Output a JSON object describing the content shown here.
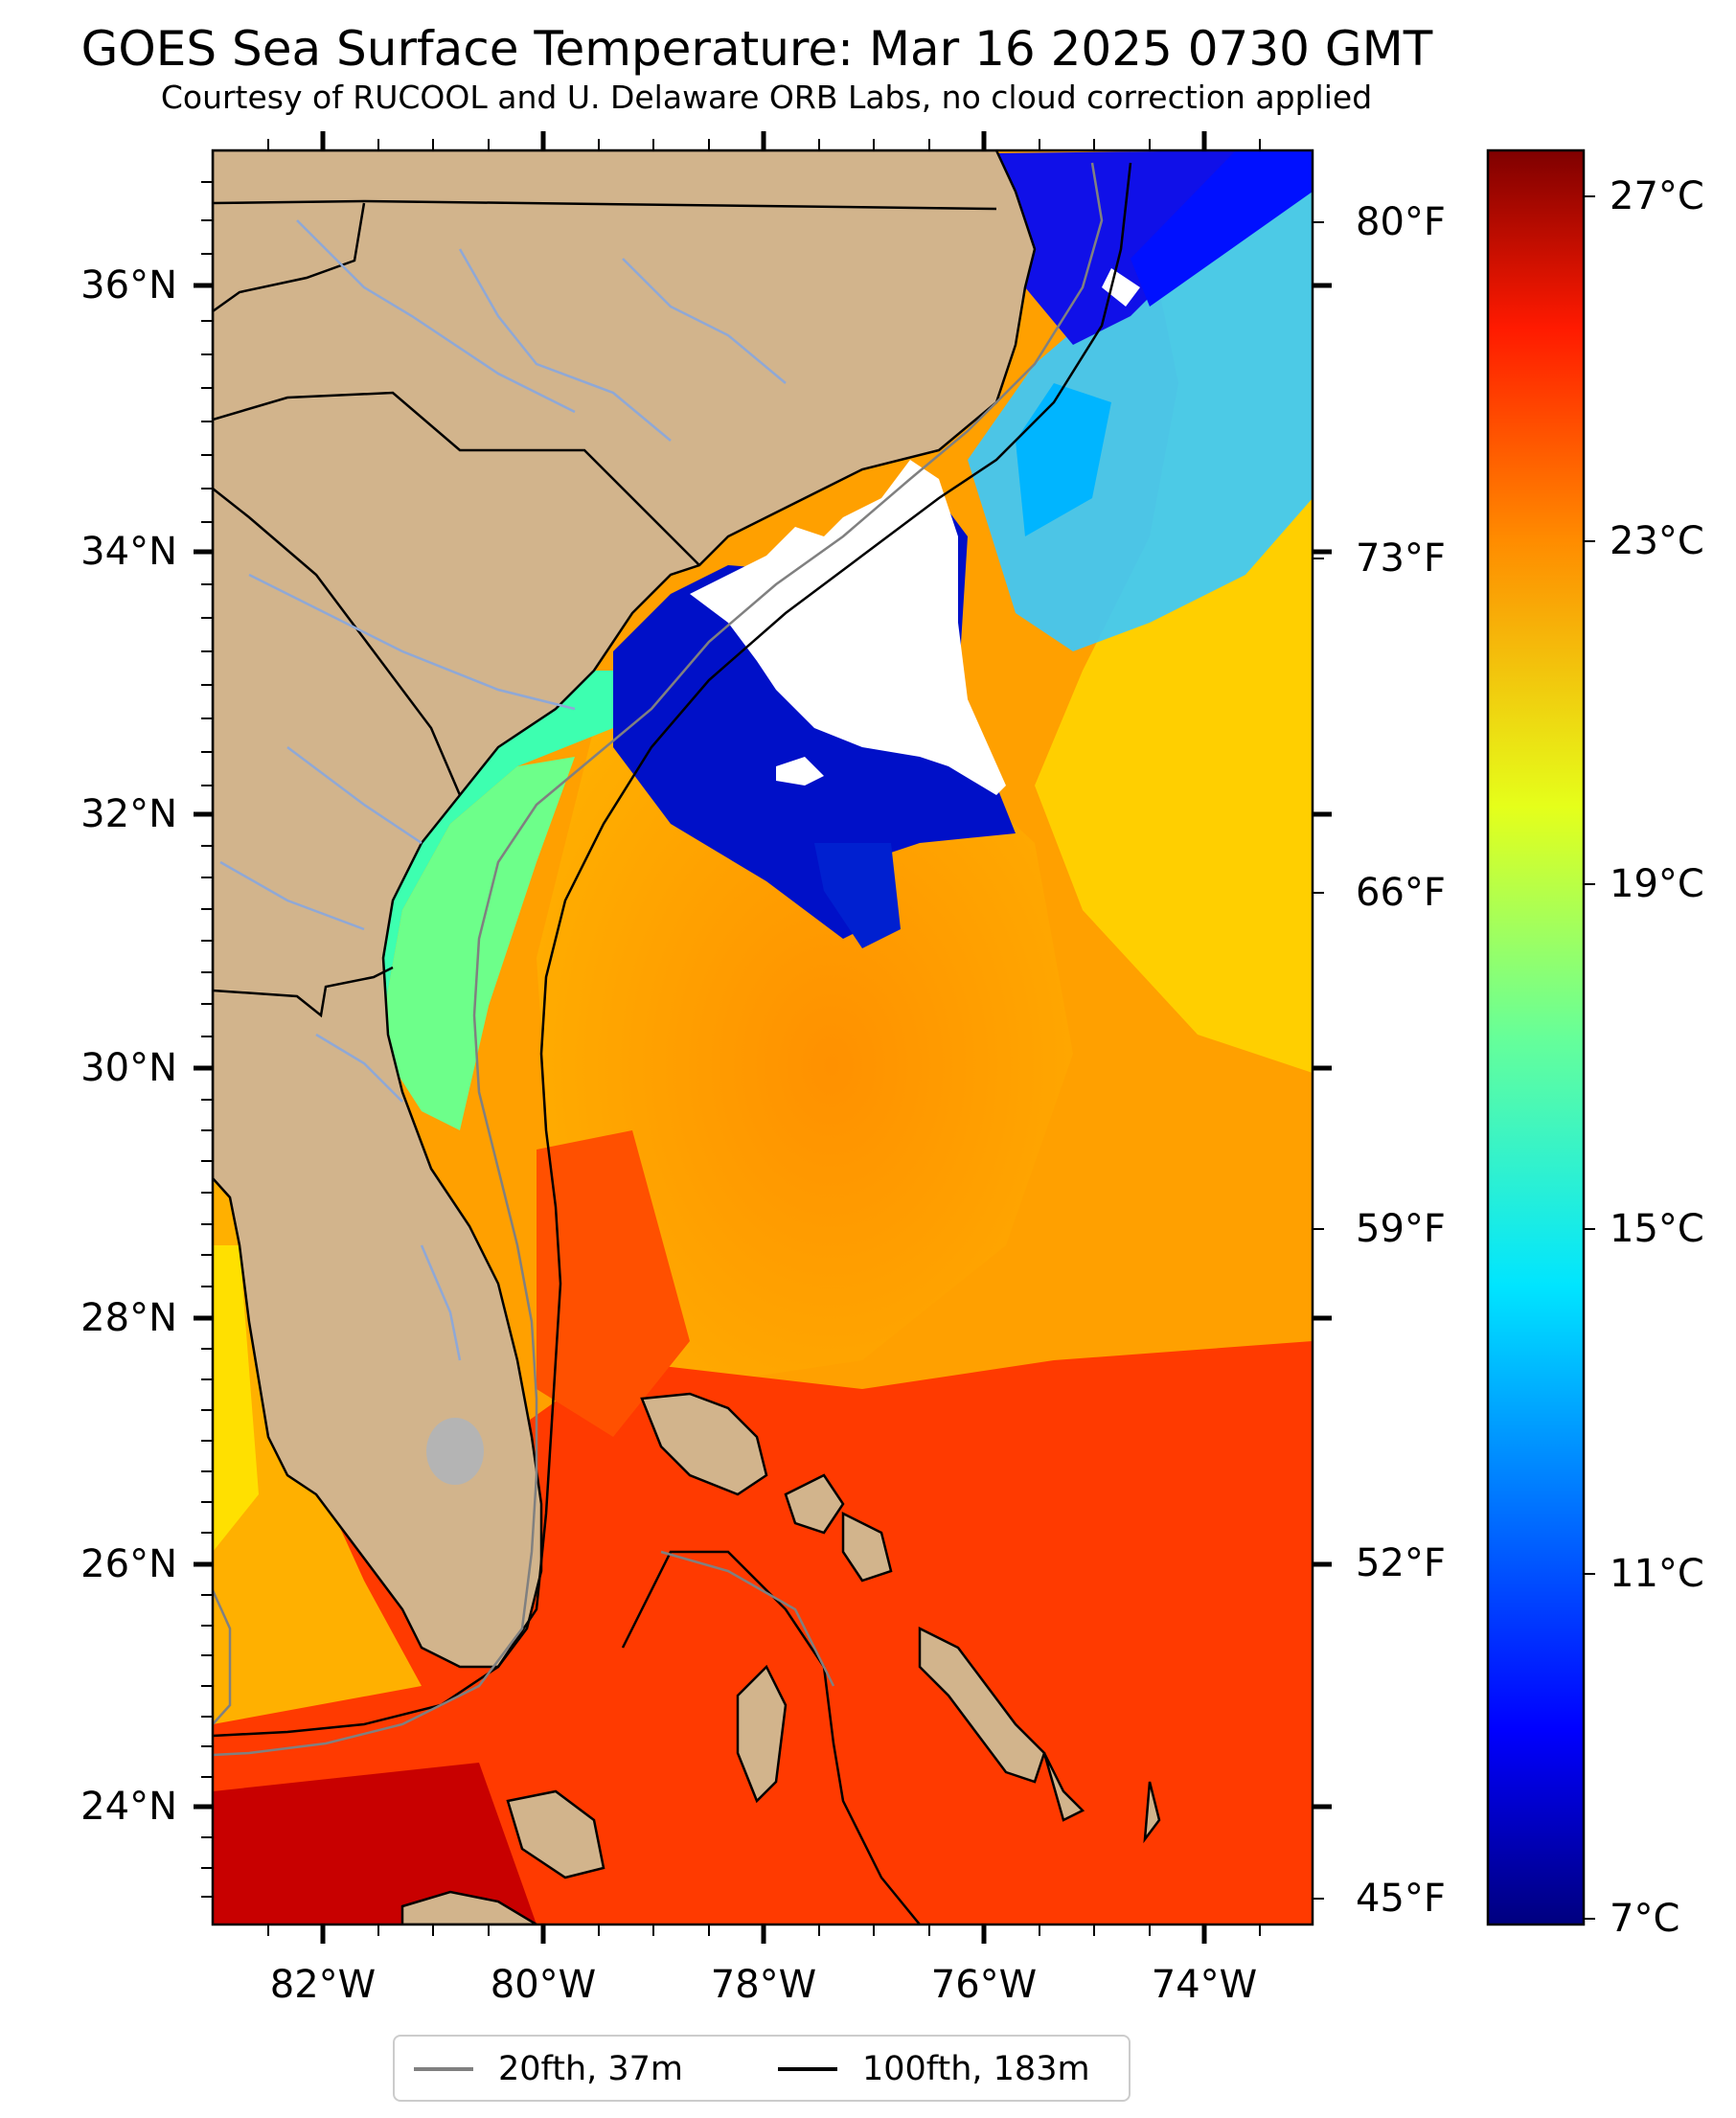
{
  "title": "GOES Sea Surface Temperature: Mar 16 2025 0730 GMT",
  "subtitle": "Courtesy of RUCOOL and U. Delaware ORB Labs, no cloud correction applied",
  "map": {
    "lat_labels": [
      "36°N",
      "34°N",
      "32°N",
      "30°N",
      "28°N",
      "26°N",
      "24°N"
    ],
    "lon_labels": [
      "82°W",
      "80°W",
      "78°W",
      "76°W",
      "74°W"
    ],
    "fahrenheit_labels": [
      "80°F",
      "73°F",
      "66°F",
      "59°F",
      "52°F",
      "45°F"
    ],
    "colors": {
      "land": "#d2b48c",
      "no_data": "#ffffff",
      "coast": "#000000",
      "rivers": "#8fa8d6",
      "lake": "#b4b4b4"
    }
  },
  "colorbar": {
    "celsius_labels": [
      "27°C",
      "23°C",
      "19°C",
      "15°C",
      "11°C",
      "7°C"
    ],
    "range_celsius": [
      7,
      27.5
    ],
    "colormap": "jet"
  },
  "legend": {
    "items": [
      {
        "label": "20fth, 37m",
        "color": "#808080"
      },
      {
        "label": "100fth, 183m",
        "color": "#000000"
      }
    ]
  }
}
